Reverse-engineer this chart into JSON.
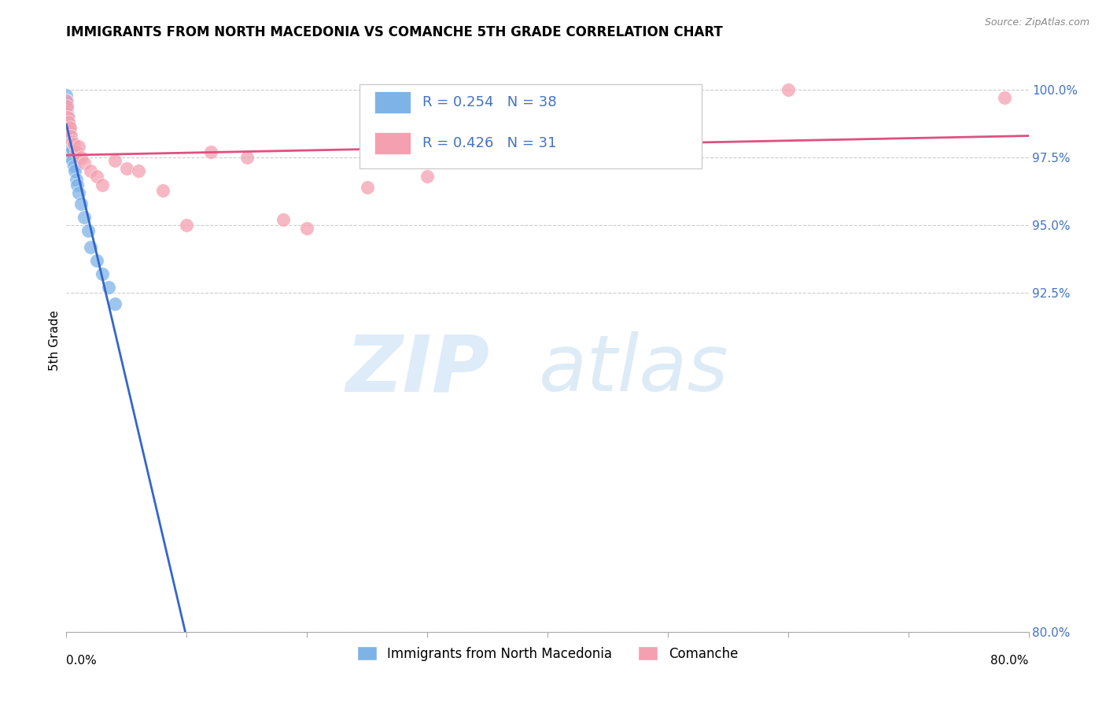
{
  "title": "IMMIGRANTS FROM NORTH MACEDONIA VS COMANCHE 5TH GRADE CORRELATION CHART",
  "source": "Source: ZipAtlas.com",
  "ylabel": "5th Grade",
  "xmin": 0.0,
  "xmax": 80.0,
  "ymin": 80.0,
  "ymax": 101.5,
  "blue_R": 0.254,
  "blue_N": 38,
  "pink_R": 0.426,
  "pink_N": 31,
  "blue_color": "#7EB3E8",
  "pink_color": "#F4A0B0",
  "blue_line_color": "#3366CC",
  "pink_line_color": "#E05080",
  "legend_label_blue": "Immigrants from North Macedonia",
  "legend_label_pink": "Comanche",
  "ytick_vals": [
    80.0,
    92.5,
    95.0,
    97.5,
    100.0
  ],
  "blue_scatter_x": [
    0.0,
    0.0,
    0.0,
    0.0,
    0.0,
    0.0,
    0.0,
    0.0,
    0.05,
    0.05,
    0.05,
    0.1,
    0.1,
    0.1,
    0.1,
    0.15,
    0.15,
    0.2,
    0.2,
    0.25,
    0.3,
    0.3,
    0.4,
    0.5,
    0.5,
    0.6,
    0.7,
    0.8,
    0.9,
    1.0,
    1.2,
    1.5,
    1.8,
    2.0,
    2.5,
    3.0,
    3.5,
    4.0
  ],
  "blue_scatter_y": [
    99.8,
    99.5,
    99.2,
    99.0,
    98.7,
    98.4,
    98.1,
    97.8,
    99.6,
    99.3,
    98.9,
    99.1,
    98.6,
    98.2,
    97.6,
    99.0,
    98.5,
    98.8,
    98.3,
    98.6,
    98.4,
    97.9,
    98.2,
    97.8,
    97.4,
    97.2,
    97.0,
    96.7,
    96.5,
    96.2,
    95.8,
    95.3,
    94.8,
    94.2,
    93.7,
    93.2,
    92.7,
    92.1
  ],
  "pink_scatter_x": [
    0.0,
    0.0,
    0.05,
    0.1,
    0.15,
    0.2,
    0.25,
    0.3,
    0.4,
    0.5,
    0.6,
    0.8,
    1.0,
    1.2,
    1.5,
    2.0,
    2.5,
    3.0,
    4.0,
    5.0,
    6.0,
    8.0,
    10.0,
    12.0,
    15.0,
    18.0,
    20.0,
    25.0,
    60.0,
    78.0,
    30.0
  ],
  "pink_scatter_y": [
    99.6,
    99.2,
    99.4,
    99.0,
    98.7,
    98.8,
    98.5,
    98.6,
    98.3,
    98.1,
    98.0,
    97.7,
    97.9,
    97.5,
    97.3,
    97.0,
    96.8,
    96.5,
    97.4,
    97.1,
    97.0,
    96.3,
    95.0,
    97.7,
    97.5,
    95.2,
    94.9,
    96.4,
    100.0,
    99.7,
    96.8
  ]
}
